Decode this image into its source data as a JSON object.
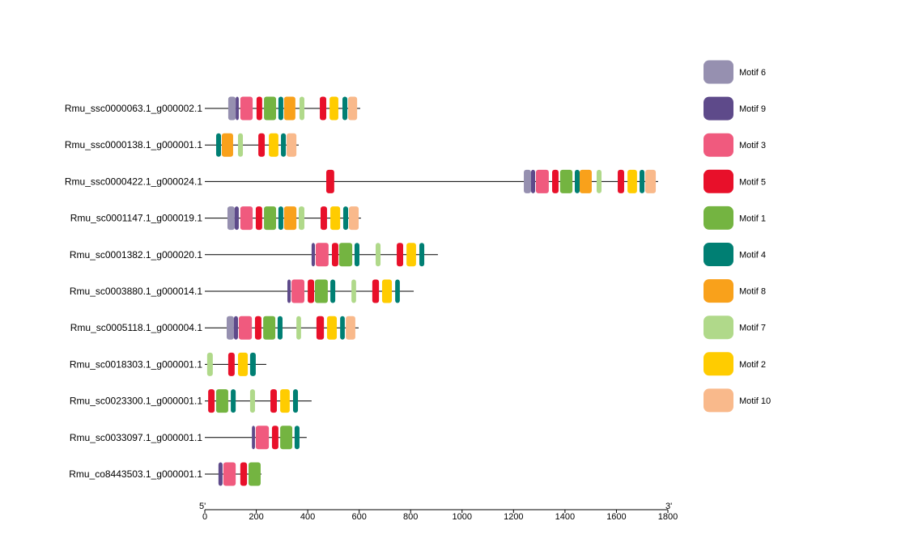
{
  "chart_data": {
    "type": "motif-diagram",
    "title": "",
    "xaxis": {
      "min": 0,
      "max": 1800,
      "ticks": [
        0,
        200,
        400,
        600,
        800,
        1000,
        1200,
        1400,
        1600,
        1800
      ],
      "left_end_label": "5'",
      "right_end_label": "3'"
    },
    "legend": [
      {
        "motif": "Motif 6",
        "color": "#9690B0"
      },
      {
        "motif": "Motif 9",
        "color": "#5E4A8A"
      },
      {
        "motif": "Motif 3",
        "color": "#F05A7E"
      },
      {
        "motif": "Motif 5",
        "color": "#E8102A"
      },
      {
        "motif": "Motif 1",
        "color": "#74B441"
      },
      {
        "motif": "Motif 4",
        "color": "#007F73"
      },
      {
        "motif": "Motif 8",
        "color": "#F9A11B"
      },
      {
        "motif": "Motif 7",
        "color": "#B0D98A"
      },
      {
        "motif": "Motif 2",
        "color": "#FFCC00"
      },
      {
        "motif": "Motif 10",
        "color": "#F9B98B"
      }
    ],
    "genes": [
      {
        "name": "Rmu_ssc0000063.1_g000002.1",
        "length": 604,
        "motifs": [
          {
            "motif": "Motif 6",
            "start": 91,
            "end": 120
          },
          {
            "motif": "Motif 9",
            "start": 120,
            "end": 132
          },
          {
            "motif": "Motif 3",
            "start": 138,
            "end": 186
          },
          {
            "motif": "Motif 5",
            "start": 201,
            "end": 223
          },
          {
            "motif": "Motif 1",
            "start": 230,
            "end": 277
          },
          {
            "motif": "Motif 4",
            "start": 286,
            "end": 305
          },
          {
            "motif": "Motif 8",
            "start": 308,
            "end": 352
          },
          {
            "motif": "Motif 7",
            "start": 368,
            "end": 387
          },
          {
            "motif": "Motif 5",
            "start": 447,
            "end": 472
          },
          {
            "motif": "Motif 2",
            "start": 485,
            "end": 519
          },
          {
            "motif": "Motif 4",
            "start": 535,
            "end": 554
          },
          {
            "motif": "Motif 10",
            "start": 557,
            "end": 592
          }
        ]
      },
      {
        "name": "Rmu_ssc0000138.1_g000001.1",
        "length": 365,
        "motifs": [
          {
            "motif": "Motif 4",
            "start": 44,
            "end": 63
          },
          {
            "motif": "Motif 8",
            "start": 66,
            "end": 110
          },
          {
            "motif": "Motif 7",
            "start": 129,
            "end": 148
          },
          {
            "motif": "Motif 5",
            "start": 208,
            "end": 233
          },
          {
            "motif": "Motif 2",
            "start": 249,
            "end": 286
          },
          {
            "motif": "Motif 4",
            "start": 296,
            "end": 315
          },
          {
            "motif": "Motif 10",
            "start": 318,
            "end": 356
          }
        ]
      },
      {
        "name": "Rmu_ssc0000422.1_g000024.1",
        "length": 1762,
        "motifs": [
          {
            "motif": "Motif 5",
            "start": 472,
            "end": 503
          },
          {
            "motif": "Motif 6",
            "start": 1240,
            "end": 1268
          },
          {
            "motif": "Motif 9",
            "start": 1268,
            "end": 1284
          },
          {
            "motif": "Motif 3",
            "start": 1287,
            "end": 1337
          },
          {
            "motif": "Motif 5",
            "start": 1350,
            "end": 1375
          },
          {
            "motif": "Motif 1",
            "start": 1381,
            "end": 1429
          },
          {
            "motif": "Motif 4",
            "start": 1438,
            "end": 1457
          },
          {
            "motif": "Motif 8",
            "start": 1457,
            "end": 1504
          },
          {
            "motif": "Motif 7",
            "start": 1523,
            "end": 1542
          },
          {
            "motif": "Motif 5",
            "start": 1605,
            "end": 1630
          },
          {
            "motif": "Motif 2",
            "start": 1643,
            "end": 1680
          },
          {
            "motif": "Motif 4",
            "start": 1690,
            "end": 1709
          },
          {
            "motif": "Motif 10",
            "start": 1712,
            "end": 1753
          }
        ]
      },
      {
        "name": "Rmu_sc0001147.1_g000019.1",
        "length": 607,
        "motifs": [
          {
            "motif": "Motif 6",
            "start": 88,
            "end": 116
          },
          {
            "motif": "Motif 9",
            "start": 116,
            "end": 132
          },
          {
            "motif": "Motif 3",
            "start": 138,
            "end": 186
          },
          {
            "motif": "Motif 5",
            "start": 198,
            "end": 223
          },
          {
            "motif": "Motif 1",
            "start": 230,
            "end": 277
          },
          {
            "motif": "Motif 4",
            "start": 286,
            "end": 305
          },
          {
            "motif": "Motif 8",
            "start": 308,
            "end": 356
          },
          {
            "motif": "Motif 7",
            "start": 365,
            "end": 387
          },
          {
            "motif": "Motif 5",
            "start": 450,
            "end": 475
          },
          {
            "motif": "Motif 2",
            "start": 488,
            "end": 526
          },
          {
            "motif": "Motif 4",
            "start": 538,
            "end": 557
          },
          {
            "motif": "Motif 10",
            "start": 560,
            "end": 598
          }
        ]
      },
      {
        "name": "Rmu_sc0001382.1_g000020.1",
        "length": 906,
        "motifs": [
          {
            "motif": "Motif 9",
            "start": 415,
            "end": 428
          },
          {
            "motif": "Motif 3",
            "start": 431,
            "end": 481
          },
          {
            "motif": "Motif 5",
            "start": 494,
            "end": 519
          },
          {
            "motif": "Motif 1",
            "start": 522,
            "end": 573
          },
          {
            "motif": "Motif 4",
            "start": 582,
            "end": 601
          },
          {
            "motif": "Motif 7",
            "start": 664,
            "end": 683
          },
          {
            "motif": "Motif 5",
            "start": 746,
            "end": 771
          },
          {
            "motif": "Motif 2",
            "start": 784,
            "end": 821
          },
          {
            "motif": "Motif 4",
            "start": 834,
            "end": 853
          }
        ]
      },
      {
        "name": "Rmu_sc0003880.1_g000014.1",
        "length": 812,
        "motifs": [
          {
            "motif": "Motif 9",
            "start": 321,
            "end": 334
          },
          {
            "motif": "Motif 3",
            "start": 337,
            "end": 387
          },
          {
            "motif": "Motif 5",
            "start": 400,
            "end": 425
          },
          {
            "motif": "Motif 1",
            "start": 428,
            "end": 478
          },
          {
            "motif": "Motif 4",
            "start": 488,
            "end": 507
          },
          {
            "motif": "Motif 7",
            "start": 570,
            "end": 588
          },
          {
            "motif": "Motif 5",
            "start": 651,
            "end": 677
          },
          {
            "motif": "Motif 2",
            "start": 689,
            "end": 727
          },
          {
            "motif": "Motif 4",
            "start": 740,
            "end": 758
          }
        ]
      },
      {
        "name": "Rmu_sc0005118.1_g000004.1",
        "length": 598,
        "motifs": [
          {
            "motif": "Motif 6",
            "start": 85,
            "end": 113
          },
          {
            "motif": "Motif 9",
            "start": 113,
            "end": 129
          },
          {
            "motif": "Motif 3",
            "start": 132,
            "end": 183
          },
          {
            "motif": "Motif 5",
            "start": 195,
            "end": 220
          },
          {
            "motif": "Motif 1",
            "start": 227,
            "end": 274
          },
          {
            "motif": "Motif 4",
            "start": 283,
            "end": 302
          },
          {
            "motif": "Motif 7",
            "start": 356,
            "end": 374
          },
          {
            "motif": "Motif 5",
            "start": 434,
            "end": 463
          },
          {
            "motif": "Motif 2",
            "start": 475,
            "end": 513
          },
          {
            "motif": "Motif 4",
            "start": 526,
            "end": 544
          },
          {
            "motif": "Motif 10",
            "start": 548,
            "end": 585
          }
        ]
      },
      {
        "name": "Rmu_sc0018303.1_g000001.1",
        "length": 239,
        "motifs": [
          {
            "motif": "Motif 7",
            "start": 9,
            "end": 31
          },
          {
            "motif": "Motif 5",
            "start": 91,
            "end": 116
          },
          {
            "motif": "Motif 2",
            "start": 129,
            "end": 167
          },
          {
            "motif": "Motif 4",
            "start": 176,
            "end": 198
          }
        ]
      },
      {
        "name": "Rmu_sc0023300.1_g000001.1",
        "length": 415,
        "motifs": [
          {
            "motif": "Motif 5",
            "start": 13,
            "end": 38
          },
          {
            "motif": "Motif 1",
            "start": 44,
            "end": 91
          },
          {
            "motif": "Motif 4",
            "start": 101,
            "end": 120
          },
          {
            "motif": "Motif 7",
            "start": 176,
            "end": 195
          },
          {
            "motif": "Motif 5",
            "start": 255,
            "end": 280
          },
          {
            "motif": "Motif 2",
            "start": 293,
            "end": 330
          },
          {
            "motif": "Motif 4",
            "start": 343,
            "end": 362
          }
        ]
      },
      {
        "name": "Rmu_sc0033097.1_g000001.1",
        "length": 396,
        "motifs": [
          {
            "motif": "Motif 9",
            "start": 183,
            "end": 195
          },
          {
            "motif": "Motif 3",
            "start": 198,
            "end": 249
          },
          {
            "motif": "Motif 5",
            "start": 261,
            "end": 286
          },
          {
            "motif": "Motif 1",
            "start": 293,
            "end": 340
          },
          {
            "motif": "Motif 4",
            "start": 349,
            "end": 368
          }
        ]
      },
      {
        "name": "Rmu_co8443503.1_g000001.1",
        "length": 220,
        "motifs": [
          {
            "motif": "Motif 9",
            "start": 53,
            "end": 69
          },
          {
            "motif": "Motif 3",
            "start": 72,
            "end": 120
          },
          {
            "motif": "Motif 5",
            "start": 138,
            "end": 164
          },
          {
            "motif": "Motif 1",
            "start": 170,
            "end": 217
          }
        ]
      }
    ]
  }
}
